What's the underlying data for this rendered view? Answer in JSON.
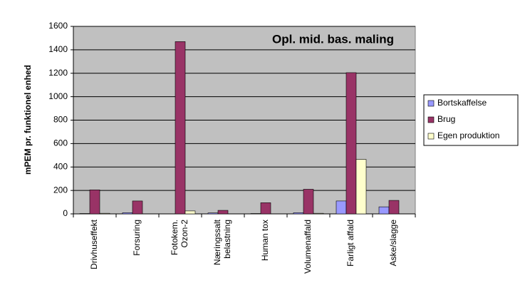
{
  "chart_data": {
    "type": "bar",
    "title": "Opl. mid. bas. maling",
    "y_label": "mPEM pr. funktionel enhed",
    "categories": [
      "Drivhuseffekt",
      "Forsuring",
      "Fotokem.\nOzon-2",
      "Næringssalt\nbelastning",
      "Human tox",
      "Volumenaffald",
      "Farligt affald",
      "Aske/slagge"
    ],
    "series": [
      {
        "name": "Bortskaffelse",
        "color": "#9999ff",
        "values": [
          3,
          10,
          0,
          8,
          3,
          10,
          110,
          60
        ]
      },
      {
        "name": "Brug",
        "color": "#993366",
        "values": [
          205,
          110,
          1470,
          30,
          95,
          210,
          1205,
          115
        ]
      },
      {
        "name": "Egen produktion",
        "color": "#ffffcc",
        "values": [
          5,
          0,
          25,
          0,
          0,
          5,
          465,
          0
        ]
      }
    ],
    "ylim": [
      0,
      1600
    ],
    "yticks": [
      0,
      200,
      400,
      600,
      800,
      1000,
      1200,
      1400,
      1600
    ],
    "grid": true,
    "legend": "right",
    "plot_background": "#c0c0c0"
  }
}
